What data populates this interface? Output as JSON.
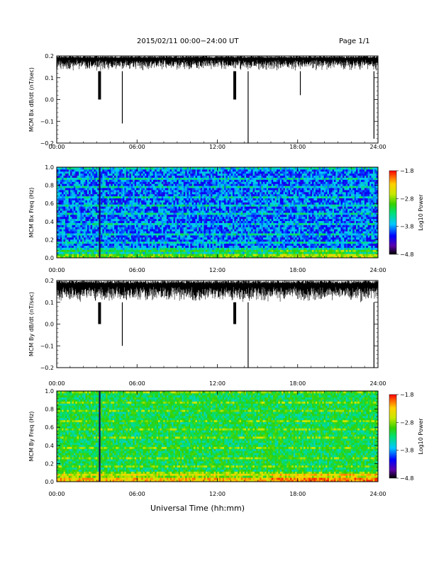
{
  "header": {
    "title": "2015/02/11  00:00−24:00 UT",
    "page": "Page 1/1"
  },
  "xlabel": "Universal Time (hh:mm)",
  "colors": {
    "trace": "#000000",
    "colorbar_stops": [
      "#000000",
      "#5b00a8",
      "#0000ff",
      "#00c8ff",
      "#00e070",
      "#34d000",
      "#c8e800",
      "#ffd000",
      "#ff6000",
      "#ff0000"
    ]
  },
  "chart_data": [
    {
      "type": "line",
      "ylabel": "MCM Bx dB/dt (nT/sec)",
      "xlim": [
        0,
        24
      ],
      "ylim": [
        -0.2,
        0.2
      ],
      "xticks": [
        "00:00",
        "06:00",
        "12:00",
        "18:00",
        "24:00"
      ],
      "yticks": [
        "0.2",
        "0.1",
        "0.0",
        "−0.1",
        "−0.2"
      ],
      "baseline_range": [
        0.13,
        0.2
      ],
      "spikes": [
        {
          "x": 3.2,
          "y": 0.0
        },
        {
          "x": 4.9,
          "y": -0.11
        },
        {
          "x": 13.3,
          "y": 0.0
        },
        {
          "x": 14.3,
          "y": -0.2
        },
        {
          "x": 18.2,
          "y": 0.02
        },
        {
          "x": 23.7,
          "y": -0.18
        }
      ]
    },
    {
      "type": "heatmap",
      "ylabel": "MCM Bx Freq (Hz)",
      "xlim": [
        0,
        24
      ],
      "ylim": [
        0,
        1.0
      ],
      "xticks": [
        "00:00",
        "06:00",
        "12:00",
        "18:00",
        "24:00"
      ],
      "yticks": [
        "1.0",
        "0.8",
        "0.6",
        "0.4",
        "0.2",
        "0.0"
      ],
      "colorbar_label": "Log10 Power",
      "colorbar_ticks": [
        "−1.8",
        "−2.8",
        "−3.8",
        "−4.8"
      ],
      "clim": [
        -4.8,
        -1.8
      ],
      "dominant_level": "low (blue)",
      "band_freqs": [
        0.08,
        0.17,
        0.27,
        0.37,
        0.48,
        0.58,
        0.68,
        0.78,
        0.88,
        0.98
      ]
    },
    {
      "type": "line",
      "ylabel": "MCM By dB/dt (nT/sec)",
      "xlim": [
        0,
        24
      ],
      "ylim": [
        -0.2,
        0.2
      ],
      "xticks": [
        "00:00",
        "06:00",
        "12:00",
        "18:00",
        "24:00"
      ],
      "yticks": [
        "0.2",
        "0.1",
        "0.0",
        "−0.1",
        "−0.2"
      ],
      "baseline_range": [
        0.1,
        0.2
      ],
      "spikes": [
        {
          "x": 3.2,
          "y": 0.0
        },
        {
          "x": 4.9,
          "y": -0.1
        },
        {
          "x": 13.3,
          "y": 0.0
        },
        {
          "x": 14.3,
          "y": -0.2
        },
        {
          "x": 23.7,
          "y": -0.2
        }
      ]
    },
    {
      "type": "heatmap",
      "ylabel": "MCM By Freq (Hz)",
      "xlim": [
        0,
        24
      ],
      "ylim": [
        0,
        1.0
      ],
      "xticks": [
        "00:00",
        "06:00",
        "12:00",
        "18:00",
        "24:00"
      ],
      "yticks": [
        "1.0",
        "0.8",
        "0.6",
        "0.4",
        "0.2",
        "0.0"
      ],
      "colorbar_label": "Log10 Power",
      "colorbar_ticks": [
        "−1.8",
        "−2.8",
        "−3.8",
        "−4.8"
      ],
      "clim": [
        -4.8,
        -1.8
      ],
      "dominant_level": "mid (green)",
      "band_freqs": [
        0.08,
        0.17,
        0.27,
        0.37,
        0.48,
        0.58,
        0.68,
        0.78,
        0.88,
        0.98
      ]
    }
  ]
}
